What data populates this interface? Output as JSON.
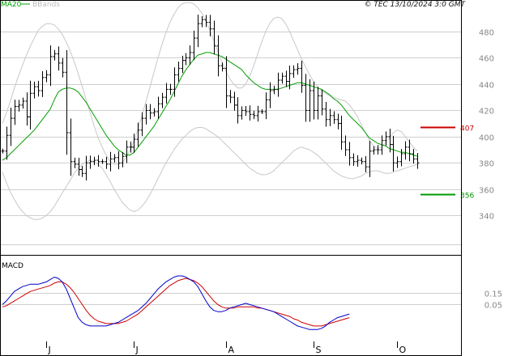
{
  "header": {
    "legend": [
      {
        "label": "MA20",
        "color": "#00a000"
      },
      {
        "label": "BBands",
        "color": "#c8c8c8"
      }
    ],
    "timestamp": "© TEC 13/10/2024 3:0 GMT"
  },
  "chart_data": [
    {
      "type": "bar",
      "subtype": "ohlc",
      "panel": "price",
      "ylim": [
        318,
        504
      ],
      "y_ticks": [
        340,
        360,
        380,
        400,
        420,
        440,
        460,
        480
      ],
      "x_ticks": [
        {
          "label": "J",
          "index": 11
        },
        {
          "label": "J",
          "index": 33
        },
        {
          "label": "A",
          "index": 56
        },
        {
          "label": "S",
          "index": 78
        },
        {
          "label": "O",
          "index": 99
        }
      ],
      "close": [
        389,
        401,
        414,
        423,
        424,
        427,
        415,
        433,
        438,
        435,
        445,
        447,
        461,
        463,
        456,
        449,
        403,
        381,
        379,
        375,
        372,
        380,
        381,
        382,
        381,
        381,
        379,
        383,
        384,
        380,
        385,
        392,
        392,
        398,
        405,
        414,
        420,
        418,
        419,
        425,
        430,
        436,
        436,
        447,
        452,
        458,
        460,
        464,
        475,
        486,
        489,
        487,
        482,
        469,
        454,
        452,
        431,
        430,
        424,
        416,
        420,
        419,
        417,
        416,
        419,
        419,
        428,
        435,
        436,
        443,
        446,
        442,
        448,
        451,
        452,
        439,
        420,
        435,
        420,
        431,
        421,
        413,
        416,
        413,
        410,
        396,
        390,
        384,
        381,
        382,
        381,
        377,
        389,
        390,
        390,
        397,
        400,
        394,
        380,
        381,
        387,
        392,
        387,
        383,
        380
      ],
      "levels": [
        {
          "value": 407,
          "label": "407",
          "color": "#cc0000"
        },
        {
          "value": 356,
          "label": "356",
          "color": "#009900"
        }
      ],
      "series": [
        {
          "name": "MA20",
          "color": "#00a000",
          "values": [
            382,
            384,
            387,
            390,
            393,
            396,
            399,
            402,
            405,
            409,
            413,
            417,
            421,
            428,
            434,
            436,
            437,
            437,
            436,
            434,
            430,
            426,
            421,
            416,
            411,
            406,
            401,
            397,
            393,
            390,
            388,
            386,
            386,
            388,
            392,
            396,
            400,
            404,
            408,
            413,
            418,
            423,
            428,
            434,
            440,
            446,
            451,
            455,
            459,
            462,
            463,
            464,
            464,
            463,
            462,
            461,
            459,
            457,
            455,
            453,
            451,
            447,
            444,
            441,
            439,
            437,
            436,
            436,
            436,
            436,
            437,
            438,
            439,
            440,
            441,
            441,
            440,
            439,
            438,
            437,
            436,
            434,
            432,
            429,
            427,
            424,
            420,
            416,
            413,
            410,
            407,
            403,
            399,
            397,
            395,
            394,
            393,
            391,
            390,
            389,
            388,
            388,
            387,
            386,
            385
          ]
        },
        {
          "name": "BBands",
          "color": "#c8c8c8",
          "values": [
            410,
            418,
            427,
            437,
            446,
            454,
            462,
            469,
            475,
            481,
            484,
            486,
            486,
            485,
            482,
            478,
            472,
            465,
            457,
            448,
            438,
            428,
            418,
            408,
            399,
            392,
            386,
            381,
            379,
            379,
            380,
            384,
            390,
            397,
            406,
            416,
            427,
            438,
            449,
            460,
            470,
            479,
            487,
            493,
            498,
            501,
            502,
            502,
            501,
            498,
            494,
            488,
            481,
            473,
            465,
            457,
            450,
            444,
            440,
            437,
            437,
            440,
            446,
            454,
            463,
            472,
            480,
            486,
            490,
            491,
            490,
            486,
            480,
            473,
            466,
            459,
            453,
            447,
            442,
            438,
            435,
            433,
            431,
            430,
            429,
            428,
            427,
            424,
            420,
            415,
            409,
            403,
            397,
            393,
            391,
            392,
            395,
            399,
            403,
            405,
            404,
            400,
            396,
            392,
            389
          ]
        },
        {
          "name": "BBands",
          "color": "#c8c8c8",
          "values": [
            373,
            365,
            358,
            352,
            347,
            343,
            340,
            338,
            337,
            337,
            338,
            340,
            343,
            347,
            352,
            357,
            362,
            367,
            372,
            376,
            379,
            381,
            382,
            381,
            379,
            376,
            371,
            366,
            360,
            355,
            350,
            347,
            344,
            343,
            344,
            347,
            351,
            356,
            362,
            368,
            374,
            380,
            385,
            390,
            394,
            398,
            401,
            404,
            406,
            407,
            407,
            406,
            404,
            402,
            400,
            397,
            394,
            391,
            388,
            385,
            382,
            379,
            376,
            374,
            372,
            371,
            371,
            372,
            374,
            377,
            380,
            383,
            386,
            389,
            391,
            392,
            391,
            390,
            388,
            386,
            383,
            380,
            377,
            374,
            372,
            370,
            369,
            368,
            368,
            369,
            370,
            372,
            373,
            374,
            374,
            373,
            372,
            372,
            373,
            374,
            375,
            376,
            377,
            378,
            379
          ]
        }
      ]
    },
    {
      "type": "line",
      "panel": "macd",
      "title": "MACD",
      "ylim": [
        -26,
        46
      ],
      "y_ticks": [
        {
          "value": 5,
          "label": "0.05"
        },
        {
          "value": 15,
          "label": "0.15"
        }
      ],
      "series": [
        {
          "name": "MACD",
          "color": "#0000cc",
          "values": [
            5,
            8,
            12,
            16,
            18,
            20,
            21,
            22,
            22,
            22,
            23,
            24,
            26,
            28,
            27,
            24,
            18,
            10,
            2,
            -6,
            -10,
            -12,
            -13,
            -13,
            -13,
            -13,
            -13,
            -12,
            -11,
            -10,
            -8,
            -6,
            -4,
            -2,
            0,
            3,
            6,
            10,
            14,
            18,
            21,
            24,
            26,
            28,
            29,
            29,
            28,
            26,
            24,
            20,
            14,
            8,
            3,
            0,
            -1,
            -1,
            0,
            2,
            3,
            4,
            5,
            6,
            5,
            4,
            3,
            2,
            1,
            0,
            -1,
            -3,
            -5,
            -7,
            -9,
            -11,
            -13,
            -14,
            -15,
            -16,
            -16,
            -16,
            -15,
            -13,
            -10,
            -8,
            -6,
            -5,
            -4,
            -3
          ]
        },
        {
          "name": "Signal",
          "color": "#cc0000",
          "values": [
            3,
            4,
            6,
            8,
            10,
            12,
            14,
            16,
            17,
            18,
            19,
            20,
            21,
            23,
            24,
            24,
            22,
            19,
            15,
            10,
            5,
            0,
            -4,
            -7,
            -9,
            -10,
            -11,
            -11,
            -11,
            -11,
            -10,
            -9,
            -7,
            -5,
            -3,
            0,
            3,
            6,
            9,
            12,
            15,
            18,
            21,
            23,
            25,
            26,
            27,
            26,
            25,
            23,
            20,
            16,
            12,
            8,
            5,
            3,
            2,
            2,
            2,
            3,
            3,
            3,
            3,
            3,
            2,
            2,
            1,
            0,
            -1,
            -2,
            -3,
            -4,
            -5,
            -7,
            -8,
            -10,
            -11,
            -12,
            -13,
            -13,
            -13,
            -12,
            -11,
            -10,
            -9,
            -8,
            -7,
            -6
          ]
        }
      ]
    }
  ]
}
